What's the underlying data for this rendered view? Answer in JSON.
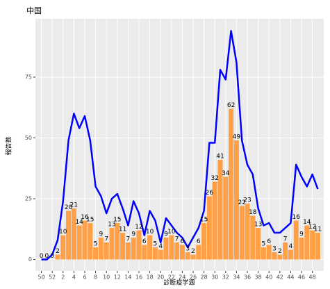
{
  "chart_data": {
    "type": "bar",
    "title": "中国",
    "x_label": "診断疫学週",
    "y_label": "報告数",
    "categories": [
      "50",
      null,
      "52",
      null,
      "2",
      null,
      "4",
      null,
      "6",
      null,
      "8",
      null,
      "10",
      null,
      "12",
      null,
      "14",
      null,
      "16",
      null,
      "18",
      null,
      "20",
      null,
      "22",
      null,
      "24",
      null,
      "26",
      null,
      "28",
      null,
      "30",
      null,
      "32",
      null,
      "34",
      null,
      "36",
      null,
      "38",
      null,
      "40",
      null,
      "42",
      null,
      "44",
      null,
      "46",
      null,
      "48",
      null
    ],
    "series": [
      {
        "type": "bar",
        "color": "#ffa047",
        "values": [
          0,
          0,
          0,
          2,
          10,
          20,
          21,
          14,
          16,
          15,
          5,
          9,
          7,
          13,
          15,
          11,
          7,
          9,
          12,
          6,
          10,
          5,
          4,
          9,
          10,
          7,
          6,
          3,
          2,
          6,
          15,
          26,
          32,
          41,
          34,
          62,
          49,
          22,
          23,
          18,
          13,
          5,
          6,
          3,
          2,
          7,
          4,
          16,
          9,
          14,
          12,
          11
        ]
      },
      {
        "type": "line",
        "color": "#0000ff",
        "values": [
          0,
          0,
          2,
          8,
          24,
          49,
          60,
          54,
          59,
          49,
          30,
          26,
          19,
          25,
          27,
          21,
          14,
          24,
          19,
          10,
          20,
          16,
          7,
          17,
          14,
          11,
          9,
          5,
          9,
          13,
          20,
          48,
          48,
          78,
          74,
          94,
          81,
          49,
          39,
          35,
          21,
          14,
          15,
          11,
          11,
          13,
          15,
          39,
          34,
          30,
          35,
          29
        ]
      }
    ],
    "ylim": [
      -4.7,
      99
    ],
    "yticks": [
      0,
      25,
      50,
      75
    ],
    "grid": true
  }
}
